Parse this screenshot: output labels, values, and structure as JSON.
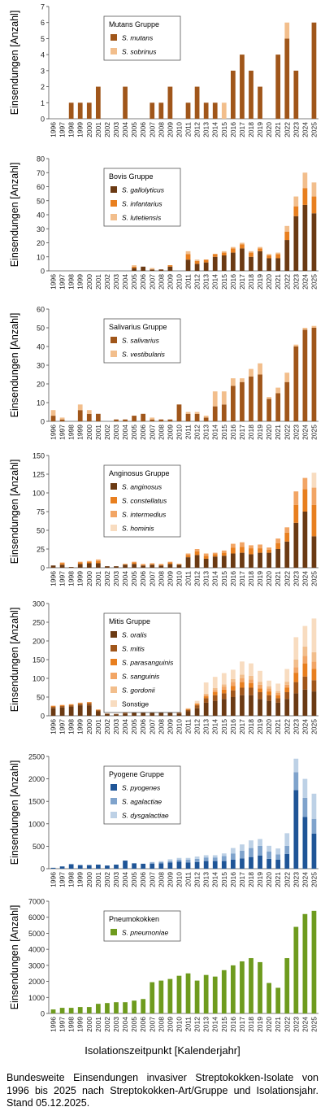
{
  "years": [
    "1996",
    "1997",
    "1998",
    "1999",
    "2000",
    "2001",
    "2002",
    "2003",
    "2004",
    "2005",
    "2006",
    "2007",
    "2008",
    "2009",
    "2010",
    "2011",
    "2012",
    "2013",
    "2014",
    "2015",
    "2016",
    "2017",
    "2018",
    "2019",
    "2020",
    "2021",
    "2022",
    "2023",
    "2024",
    "2025"
  ],
  "ylabel": "Einsendungen [Anzahl]",
  "xlabel": "Isolationszeitpunkt [Kalenderjahr]",
  "caption": "Bundesweite Einsendungen invasiver Streptokokken-Isolate von 1996 bis 2025 nach Streptokokken-Art/Gruppe und Isolationsjahr. Stand 05.12.2025.",
  "chart_data": [
    {
      "type": "bar",
      "stacked": true,
      "legend_title": "Mutans Gruppe",
      "ylim": [
        0,
        7
      ],
      "yticks": [
        0,
        1,
        2,
        3,
        4,
        5,
        6,
        7
      ],
      "series": [
        {
          "name": "S. mutans",
          "color": "#A0561A",
          "values": [
            0,
            0,
            1,
            1,
            1,
            2,
            0,
            0,
            2,
            0,
            0,
            1,
            1,
            2,
            0,
            1,
            2,
            1,
            1,
            0,
            3,
            4,
            3,
            2,
            0,
            4,
            5,
            3,
            0,
            6
          ]
        },
        {
          "name": "S. sobrinus",
          "color": "#F2BE8C",
          "values": [
            0,
            0,
            0,
            0,
            0,
            0,
            0,
            0,
            0,
            0,
            0,
            0,
            0,
            0,
            0,
            0,
            0,
            0,
            0,
            1,
            0,
            0,
            0,
            0,
            0,
            0,
            1,
            0,
            0,
            0
          ]
        }
      ]
    },
    {
      "type": "bar",
      "stacked": true,
      "legend_title": "Bovis Gruppe",
      "ylim": [
        0,
        80
      ],
      "yticks": [
        0,
        10,
        20,
        30,
        40,
        50,
        60,
        70,
        80
      ],
      "series": [
        {
          "name": "S. gallolyticus",
          "color": "#6B3A13",
          "values": [
            0,
            0,
            0,
            0,
            0,
            0,
            0,
            0,
            0,
            2,
            3,
            1,
            1,
            3,
            0,
            8,
            5,
            6,
            10,
            11,
            13,
            16,
            10,
            14,
            9,
            9,
            22,
            39,
            47,
            41
          ]
        },
        {
          "name": "S. infantarius",
          "color": "#E87F1F",
          "values": [
            0,
            0,
            0,
            0,
            0,
            0,
            0,
            0,
            0,
            1,
            0,
            0,
            0,
            1,
            0,
            4,
            2,
            2,
            2,
            2,
            3,
            3,
            3,
            2,
            2,
            3,
            6,
            7,
            12,
            12
          ]
        },
        {
          "name": "S. lutetiensis",
          "color": "#F2BE8C",
          "values": [
            0,
            0,
            0,
            0,
            0,
            0,
            0,
            0,
            0,
            1,
            0,
            1,
            0,
            0,
            0,
            2,
            1,
            0,
            0,
            1,
            1,
            1,
            1,
            1,
            1,
            1,
            4,
            7,
            11,
            10
          ]
        }
      ]
    },
    {
      "type": "bar",
      "stacked": true,
      "legend_title": "Salivarius Gruppe",
      "ylim": [
        0,
        60
      ],
      "yticks": [
        0,
        10,
        20,
        30,
        40,
        50,
        60
      ],
      "series": [
        {
          "name": "S. salivarius",
          "color": "#A0561A",
          "values": [
            3,
            1,
            0,
            6,
            4,
            4,
            0,
            1,
            1,
            3,
            4,
            1,
            1,
            1,
            9,
            4,
            4,
            2,
            8,
            9,
            19,
            21,
            24,
            25,
            12,
            15,
            21,
            40,
            49,
            50
          ]
        },
        {
          "name": "S. vestibularis",
          "color": "#F2BE8C",
          "values": [
            3,
            1,
            0,
            3,
            2,
            0,
            0,
            0,
            0,
            0,
            0,
            1,
            0,
            0,
            0,
            1,
            1,
            1,
            8,
            7,
            4,
            2,
            4,
            6,
            1,
            3,
            5,
            1,
            1,
            1
          ]
        }
      ]
    },
    {
      "type": "bar",
      "stacked": true,
      "legend_title": "Anginosus Gruppe",
      "ylim": [
        0,
        150
      ],
      "yticks": [
        0,
        25,
        50,
        75,
        100,
        125,
        150
      ],
      "series": [
        {
          "name": "S. anginosus",
          "color": "#6B3A13",
          "values": [
            3,
            4,
            1,
            5,
            6,
            6,
            2,
            2,
            4,
            5,
            3,
            4,
            3,
            5,
            4,
            14,
            17,
            12,
            15,
            16,
            19,
            20,
            18,
            20,
            20,
            25,
            35,
            60,
            75,
            42
          ]
        },
        {
          "name": "S. constellatus",
          "color": "#E87F1F",
          "values": [
            0,
            2,
            0,
            2,
            2,
            3,
            0,
            0,
            1,
            2,
            1,
            1,
            1,
            2,
            1,
            3,
            5,
            4,
            3,
            4,
            8,
            8,
            8,
            6,
            4,
            8,
            12,
            24,
            30,
            42
          ]
        },
        {
          "name": "S. intermedius",
          "color": "#F2A565",
          "values": [
            0,
            1,
            0,
            1,
            1,
            2,
            0,
            0,
            0,
            1,
            1,
            1,
            1,
            1,
            0,
            2,
            3,
            3,
            2,
            3,
            5,
            6,
            4,
            5,
            3,
            6,
            7,
            18,
            15,
            23
          ]
        },
        {
          "name": "S. hominis",
          "color": "#F8DCC0",
          "values": [
            0,
            0,
            0,
            0,
            0,
            0,
            0,
            0,
            0,
            0,
            0,
            0,
            0,
            0,
            0,
            0,
            0,
            0,
            0,
            0,
            0,
            0,
            0,
            0,
            0,
            0,
            0,
            0,
            0,
            20
          ]
        }
      ]
    },
    {
      "type": "bar",
      "stacked": true,
      "legend_title": "Mitis Gruppe",
      "ylim": [
        0,
        300
      ],
      "yticks": [
        0,
        50,
        100,
        150,
        200,
        250,
        300
      ],
      "series": [
        {
          "name": "S. oralis",
          "color": "#6B3A13",
          "values": [
            20,
            22,
            24,
            28,
            28,
            12,
            5,
            4,
            6,
            10,
            8,
            8,
            10,
            12,
            6,
            12,
            20,
            35,
            40,
            45,
            50,
            55,
            55,
            45,
            40,
            35,
            45,
            60,
            70,
            65
          ]
        },
        {
          "name": "S. mitis",
          "color": "#A0561A",
          "values": [
            4,
            4,
            4,
            4,
            6,
            3,
            1,
            1,
            2,
            2,
            3,
            4,
            3,
            4,
            2,
            4,
            8,
            12,
            15,
            15,
            18,
            20,
            20,
            18,
            15,
            12,
            18,
            30,
            35,
            30
          ]
        },
        {
          "name": "S. parasanguinis",
          "color": "#E87F1F",
          "values": [
            2,
            2,
            2,
            2,
            2,
            1,
            0,
            0,
            1,
            1,
            1,
            1,
            1,
            1,
            1,
            2,
            3,
            5,
            8,
            10,
            12,
            15,
            12,
            10,
            10,
            8,
            12,
            25,
            35,
            30
          ]
        },
        {
          "name": "S. sanguinis",
          "color": "#F2A565",
          "values": [
            1,
            1,
            1,
            1,
            1,
            1,
            0,
            0,
            0,
            0,
            1,
            1,
            1,
            1,
            0,
            1,
            2,
            4,
            6,
            8,
            10,
            10,
            10,
            10,
            8,
            6,
            8,
            15,
            20,
            20
          ]
        },
        {
          "name": "S. gordonii",
          "color": "#F2BE8C",
          "values": [
            0,
            0,
            0,
            0,
            0,
            0,
            0,
            0,
            0,
            0,
            0,
            0,
            0,
            0,
            0,
            1,
            2,
            3,
            5,
            6,
            8,
            10,
            10,
            8,
            6,
            5,
            8,
            20,
            25,
            25
          ]
        },
        {
          "name": "Sonstige",
          "color": "#F8DCC0",
          "values": [
            0,
            0,
            0,
            0,
            0,
            0,
            0,
            0,
            0,
            0,
            0,
            0,
            0,
            0,
            0,
            0,
            5,
            30,
            30,
            30,
            25,
            35,
            33,
            29,
            15,
            20,
            34,
            60,
            55,
            90
          ]
        }
      ]
    },
    {
      "type": "bar",
      "stacked": true,
      "legend_title": "Pyogene Gruppe",
      "ylim": [
        0,
        2500
      ],
      "yticks": [
        0,
        500,
        1000,
        1500,
        2000,
        2500
      ],
      "series": [
        {
          "name": "S. pyogenes",
          "color": "#1F5597",
          "values": [
            20,
            50,
            100,
            80,
            80,
            90,
            70,
            90,
            180,
            120,
            110,
            110,
            120,
            140,
            160,
            140,
            150,
            170,
            170,
            170,
            200,
            230,
            260,
            290,
            220,
            200,
            330,
            1750,
            1150,
            780
          ]
        },
        {
          "name": "S. agalactiae",
          "color": "#7FA3CC",
          "values": [
            0,
            0,
            0,
            0,
            0,
            0,
            0,
            0,
            0,
            0,
            0,
            30,
            30,
            30,
            40,
            60,
            70,
            80,
            80,
            110,
            140,
            170,
            200,
            220,
            160,
            120,
            180,
            400,
            430,
            330
          ]
        },
        {
          "name": "S. dysgalactiae",
          "color": "#BDD1E6",
          "values": [
            0,
            0,
            0,
            0,
            0,
            0,
            0,
            0,
            0,
            0,
            0,
            10,
            20,
            40,
            40,
            40,
            50,
            50,
            50,
            60,
            120,
            140,
            170,
            150,
            130,
            130,
            280,
            300,
            420,
            560
          ]
        }
      ]
    },
    {
      "type": "bar",
      "stacked": true,
      "legend_title": "Pneumokokken",
      "ylim": [
        0,
        7000
      ],
      "yticks": [
        0,
        1000,
        2000,
        3000,
        4000,
        5000,
        6000,
        7000
      ],
      "series": [
        {
          "name": "S. pneumoniae",
          "color": "#6E9B1E",
          "values": [
            250,
            350,
            350,
            400,
            400,
            600,
            650,
            700,
            700,
            800,
            900,
            1950,
            2050,
            2150,
            2350,
            2500,
            2050,
            2400,
            2300,
            2700,
            3000,
            3250,
            3450,
            3200,
            1900,
            1600,
            3450,
            5400,
            6200,
            6400
          ]
        }
      ]
    }
  ]
}
